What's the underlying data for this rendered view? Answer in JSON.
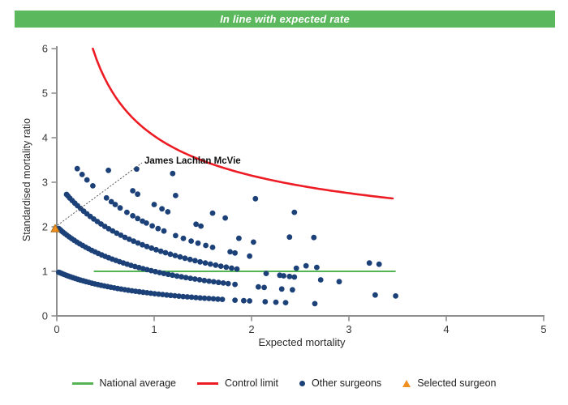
{
  "banner": {
    "text": "In line with expected rate",
    "background": "#5cb85c",
    "text_color": "#ffffff"
  },
  "chart_data": {
    "type": "scatter",
    "title": "In line with expected rate",
    "xlabel": "Expected mortality",
    "ylabel": "Standardised mortality ratio",
    "xlim": [
      0,
      5
    ],
    "ylim": [
      0,
      6
    ],
    "x_ticks": [
      0,
      1,
      2,
      3,
      4,
      5
    ],
    "y_ticks": [
      0,
      1,
      2,
      3,
      4,
      5,
      6
    ],
    "grid": false,
    "legend_position": "bottom",
    "dot_color": "#1c4178",
    "smr_formula": "smr = deaths / (1 + expected_mortality)",
    "surgeon_bands": [
      {
        "deaths": 1,
        "dense": {
          "from": 0.02,
          "to": 1.7,
          "count": 50,
          "power": 1.35
        },
        "sparse": [
          1.83,
          1.92,
          1.98,
          2.14,
          2.25,
          2.35,
          2.65
        ]
      },
      {
        "deaths": 2,
        "dense": {
          "from": 0.02,
          "to": 1.76,
          "count": 48,
          "power": 1.35
        },
        "sparse": [
          1.83,
          2.07,
          2.13,
          2.31,
          2.42,
          3.27,
          3.48
        ]
      },
      {
        "deaths": 3,
        "dense": {
          "from": 0.1,
          "to": 1.85,
          "count": 42,
          "power": 1.3
        },
        "sparse": [
          2.15,
          2.29,
          2.33,
          2.39,
          2.44,
          2.71,
          2.9
        ]
      },
      {
        "deaths": 4,
        "dense": null,
        "sparse": [
          0.21,
          0.26,
          0.31,
          0.37,
          0.51,
          0.56,
          0.6,
          0.65,
          0.72,
          0.78,
          0.83,
          0.88,
          0.92,
          0.98,
          1.04,
          1.1,
          1.22,
          1.3,
          1.38,
          1.45,
          1.53,
          1.6,
          1.78,
          1.83,
          1.98,
          2.56,
          2.67
        ]
      },
      {
        "deaths": 5,
        "dense": null,
        "sparse": [
          0.53,
          0.78,
          0.83,
          1.0,
          1.08,
          1.14,
          1.43,
          1.48,
          1.87,
          2.02,
          3.21,
          3.31
        ]
      },
      {
        "deaths": 6,
        "dense": null,
        "sparse": [
          0.82,
          1.22,
          1.6,
          1.73,
          2.39
        ]
      },
      {
        "deaths": 7,
        "dense": null,
        "sparse": [
          1.19
        ]
      },
      {
        "deaths": 8,
        "dense": null,
        "sparse": [
          2.04,
          2.44
        ]
      }
    ],
    "extra_points": [
      [
        2.46,
        1.07
      ],
      [
        2.64,
        1.76
      ]
    ],
    "national_average": {
      "y": 1,
      "x_from": 0.38,
      "x_to": 3.48,
      "color": "#55b554"
    },
    "control_limit": {
      "formula": "1 + 3.04 / sqrt(x)",
      "base": 1,
      "coef": 3.04,
      "x_from": 0.37,
      "x_to": 3.48,
      "y_max": 6,
      "color": "#ed1c24"
    },
    "selected_surgeon": {
      "name": "James Lachlan McVie",
      "expected_mortality": 0.0,
      "smr": 1.95,
      "color": "#ef8f1f",
      "edge_color": "#b06e10"
    }
  },
  "legend": {
    "items": [
      {
        "label": "National average",
        "type": "line",
        "color": "#55b554"
      },
      {
        "label": "Control limit",
        "type": "line",
        "color": "#ed1c24"
      },
      {
        "label": "Other surgeons",
        "type": "dot",
        "color": "#1c4178"
      },
      {
        "label": "Selected surgeon",
        "type": "triangle",
        "color": "#ef8f1f"
      }
    ]
  }
}
